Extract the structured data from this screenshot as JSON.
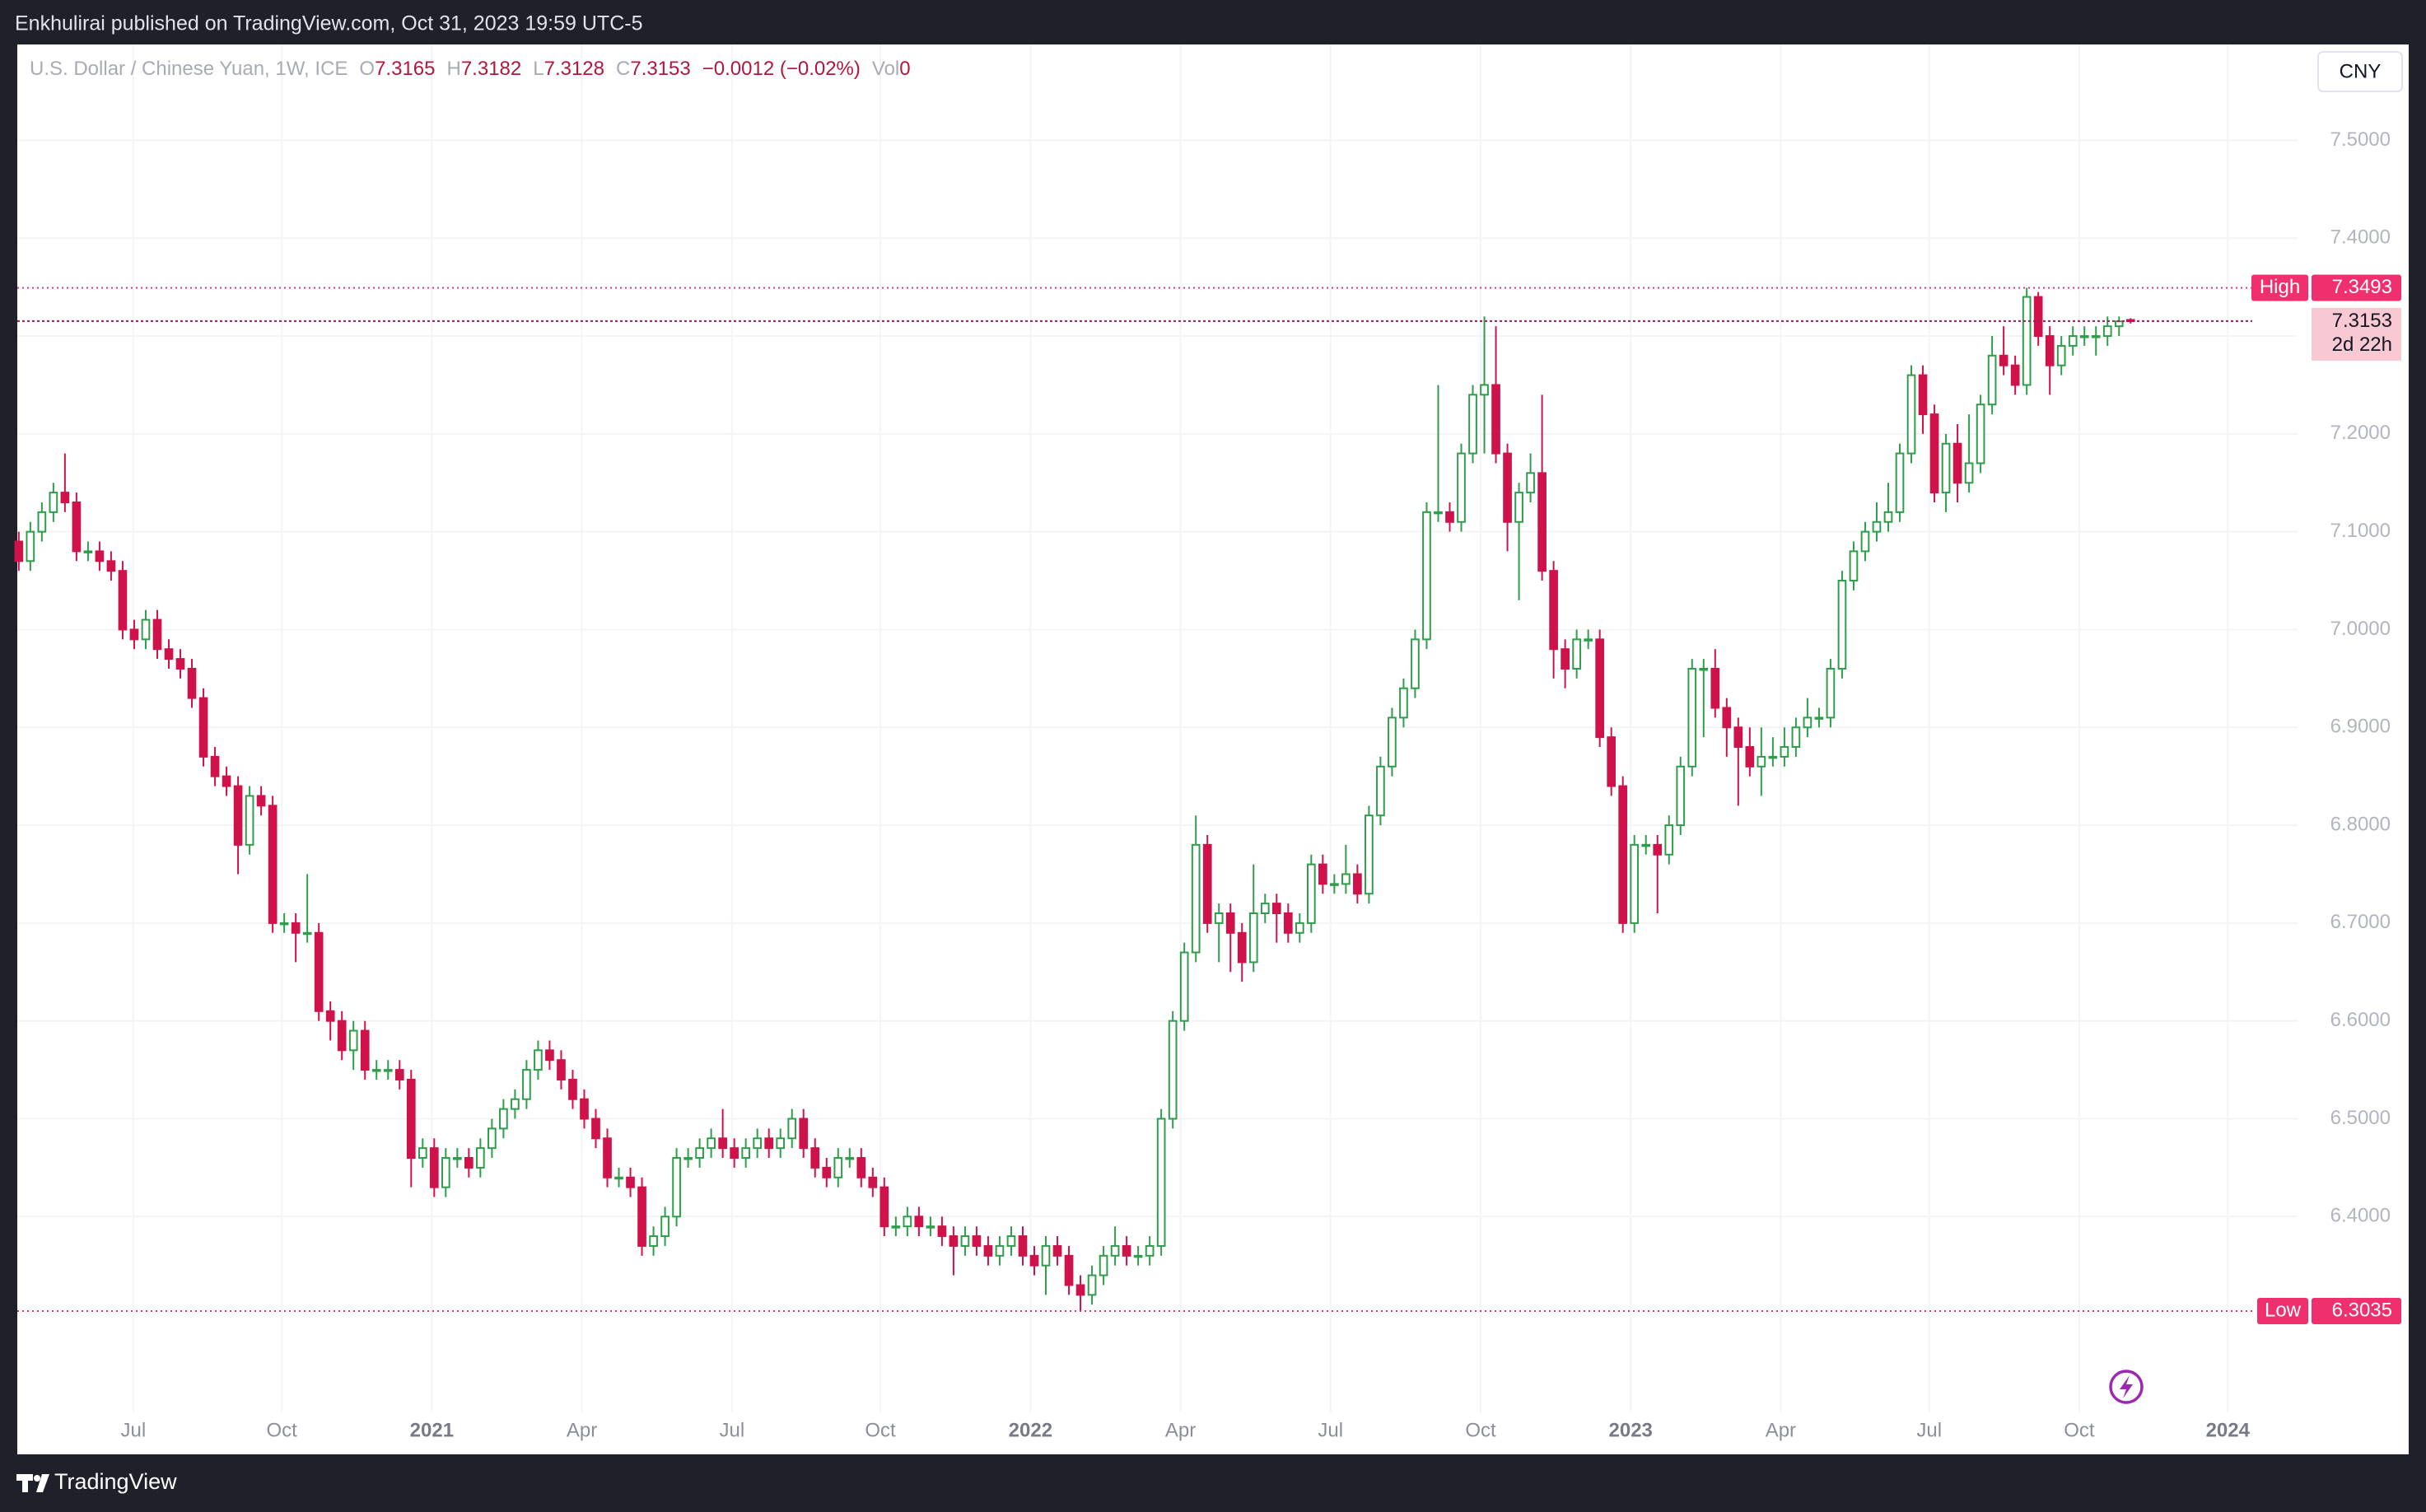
{
  "header": {
    "text": "Enkhulirai published on TradingView.com, Oct 31, 2023 19:59 UTC-5"
  },
  "chart_data": {
    "type": "candlestick",
    "title": "U.S. Dollar / Chinese Yuan, 1W, ICE",
    "legend": {
      "o": "O",
      "h": "H",
      "l": "L",
      "c": "C",
      "change": "−0.0012 (−0.02%)",
      "vol_label": "Vol",
      "volume": 0
    },
    "currency": "CNY",
    "up_color": "#2e9e4a",
    "down_color": "#d0124a",
    "open": [
      7.09,
      7.07,
      7.1,
      7.12,
      7.14,
      7.13,
      7.08,
      7.08,
      7.07,
      7.06,
      7.0,
      6.99,
      7.01,
      6.98,
      6.97,
      6.96,
      6.93,
      6.87,
      6.85,
      6.84,
      6.78,
      6.83,
      6.82,
      6.7,
      6.7,
      6.69,
      6.69,
      6.61,
      6.6,
      6.57,
      6.59,
      6.55,
      6.55,
      6.55,
      6.54,
      6.46,
      6.47,
      6.43,
      6.46,
      6.46,
      6.45,
      6.47,
      6.49,
      6.51,
      6.52,
      6.55,
      6.57,
      6.56,
      6.54,
      6.52,
      6.5,
      6.48,
      6.44,
      6.44,
      6.43,
      6.37,
      6.38,
      6.4,
      6.46,
      6.46,
      6.47,
      6.48,
      6.47,
      6.46,
      6.47,
      6.48,
      6.47,
      6.48,
      6.5,
      6.47,
      6.45,
      6.44,
      6.46,
      6.46,
      6.44,
      6.43,
      6.39,
      6.39,
      6.4,
      6.39,
      6.39,
      6.38,
      6.37,
      6.38,
      6.37,
      6.36,
      6.37,
      6.38,
      6.36,
      6.35,
      6.37,
      6.36,
      6.33,
      6.32,
      6.34,
      6.36,
      6.37,
      6.36,
      6.36,
      6.37,
      6.5,
      6.6,
      6.67,
      6.78,
      6.7,
      6.71,
      6.69,
      6.66,
      6.71,
      6.72,
      6.71,
      6.69,
      6.7,
      6.76,
      6.74,
      6.74,
      6.75,
      6.73,
      6.81,
      6.86,
      6.91,
      6.94,
      6.99,
      7.12,
      7.12,
      7.11,
      7.18,
      7.24,
      7.25,
      7.18,
      7.11,
      7.14,
      7.16,
      7.06,
      6.98,
      6.96,
      6.99,
      6.99,
      6.89,
      6.84,
      6.7,
      6.78,
      6.78,
      6.77,
      6.8,
      6.86,
      6.96,
      6.96,
      6.92,
      6.9,
      6.88,
      6.86,
      6.87,
      6.87,
      6.88,
      6.9,
      6.91,
      6.91,
      6.96,
      7.05,
      7.08,
      7.1,
      7.11,
      7.12,
      7.18,
      7.26,
      7.22,
      7.14,
      7.19,
      7.15,
      7.17,
      7.23,
      7.28,
      7.27,
      7.25,
      7.34,
      7.3,
      7.27,
      7.29,
      7.3,
      7.3,
      7.3,
      7.31,
      7.3165
    ],
    "high": [
      7.1,
      7.11,
      7.13,
      7.15,
      7.18,
      7.14,
      7.09,
      7.09,
      7.08,
      7.07,
      7.01,
      7.02,
      7.02,
      6.99,
      6.98,
      6.97,
      6.94,
      6.88,
      6.86,
      6.85,
      6.84,
      6.84,
      6.83,
      6.71,
      6.71,
      6.75,
      6.7,
      6.62,
      6.61,
      6.6,
      6.6,
      6.56,
      6.56,
      6.56,
      6.55,
      6.48,
      6.48,
      6.47,
      6.47,
      6.47,
      6.48,
      6.5,
      6.52,
      6.53,
      6.56,
      6.58,
      6.58,
      6.57,
      6.55,
      6.53,
      6.51,
      6.49,
      6.45,
      6.45,
      6.44,
      6.39,
      6.41,
      6.47,
      6.47,
      6.48,
      6.49,
      6.51,
      6.48,
      6.48,
      6.49,
      6.49,
      6.49,
      6.51,
      6.51,
      6.48,
      6.46,
      6.47,
      6.47,
      6.47,
      6.45,
      6.44,
      6.4,
      6.41,
      6.41,
      6.4,
      6.4,
      6.39,
      6.39,
      6.39,
      6.38,
      6.38,
      6.39,
      6.39,
      6.37,
      6.38,
      6.38,
      6.37,
      6.34,
      6.35,
      6.37,
      6.39,
      6.38,
      6.37,
      6.38,
      6.51,
      6.61,
      6.68,
      6.81,
      6.79,
      6.72,
      6.72,
      6.7,
      6.76,
      6.73,
      6.73,
      6.72,
      6.71,
      6.77,
      6.77,
      6.75,
      6.78,
      6.76,
      6.82,
      6.87,
      6.92,
      6.95,
      7.0,
      7.13,
      7.25,
      7.13,
      7.19,
      7.25,
      7.32,
      7.31,
      7.19,
      7.15,
      7.18,
      7.24,
      7.07,
      6.99,
      7.0,
      7.0,
      7.0,
      6.9,
      6.85,
      6.79,
      6.79,
      6.79,
      6.81,
      6.87,
      6.97,
      6.97,
      6.98,
      6.93,
      6.91,
      6.9,
      6.9,
      6.89,
      6.9,
      6.91,
      6.93,
      6.92,
      6.97,
      7.06,
      7.09,
      7.11,
      7.13,
      7.15,
      7.19,
      7.27,
      7.27,
      7.23,
      7.2,
      7.21,
      7.22,
      7.24,
      7.3,
      7.31,
      7.28,
      7.3493,
      7.345,
      7.31,
      7.3,
      7.31,
      7.31,
      7.31,
      7.32,
      7.32,
      7.3182
    ],
    "low": [
      7.06,
      7.06,
      7.09,
      7.11,
      7.12,
      7.07,
      7.07,
      7.06,
      7.05,
      6.99,
      6.98,
      6.98,
      6.97,
      6.96,
      6.95,
      6.92,
      6.86,
      6.84,
      6.83,
      6.75,
      6.77,
      6.81,
      6.69,
      6.69,
      6.66,
      6.68,
      6.6,
      6.58,
      6.56,
      6.55,
      6.54,
      6.54,
      6.54,
      6.53,
      6.43,
      6.45,
      6.42,
      6.42,
      6.45,
      6.44,
      6.44,
      6.46,
      6.48,
      6.5,
      6.51,
      6.54,
      6.55,
      6.53,
      6.51,
      6.49,
      6.47,
      6.43,
      6.43,
      6.42,
      6.36,
      6.36,
      6.37,
      6.39,
      6.45,
      6.45,
      6.46,
      6.46,
      6.45,
      6.45,
      6.46,
      6.46,
      6.46,
      6.47,
      6.46,
      6.44,
      6.43,
      6.43,
      6.45,
      6.43,
      6.42,
      6.38,
      6.38,
      6.38,
      6.38,
      6.38,
      6.37,
      6.34,
      6.36,
      6.36,
      6.35,
      6.35,
      6.36,
      6.35,
      6.34,
      6.32,
      6.35,
      6.32,
      6.3035,
      6.31,
      6.33,
      6.35,
      6.35,
      6.35,
      6.35,
      6.36,
      6.49,
      6.59,
      6.66,
      6.69,
      6.66,
      6.65,
      6.64,
      6.65,
      6.7,
      6.68,
      6.68,
      6.68,
      6.69,
      6.73,
      6.73,
      6.73,
      6.72,
      6.72,
      6.8,
      6.85,
      6.9,
      6.93,
      6.98,
      7.11,
      7.1,
      7.1,
      7.17,
      7.18,
      7.17,
      7.08,
      7.03,
      7.13,
      7.05,
      6.95,
      6.94,
      6.95,
      6.98,
      6.88,
      6.83,
      6.69,
      6.69,
      6.77,
      6.71,
      6.76,
      6.79,
      6.85,
      6.89,
      6.91,
      6.87,
      6.82,
      6.85,
      6.83,
      6.86,
      6.86,
      6.87,
      6.89,
      6.9,
      6.9,
      6.95,
      7.04,
      7.07,
      7.09,
      7.1,
      7.11,
      7.17,
      7.2,
      7.13,
      7.12,
      7.13,
      7.14,
      7.16,
      7.22,
      7.26,
      7.24,
      7.24,
      7.29,
      7.24,
      7.26,
      7.28,
      7.29,
      7.28,
      7.29,
      7.3,
      7.3128
    ],
    "close": [
      7.07,
      7.1,
      7.12,
      7.14,
      7.13,
      7.08,
      7.08,
      7.07,
      7.06,
      7.0,
      6.99,
      7.01,
      6.98,
      6.97,
      6.96,
      6.93,
      6.87,
      6.85,
      6.84,
      6.78,
      6.83,
      6.82,
      6.7,
      6.7,
      6.69,
      6.69,
      6.61,
      6.6,
      6.57,
      6.59,
      6.55,
      6.55,
      6.55,
      6.54,
      6.46,
      6.47,
      6.43,
      6.46,
      6.46,
      6.45,
      6.47,
      6.49,
      6.51,
      6.52,
      6.55,
      6.57,
      6.56,
      6.54,
      6.52,
      6.5,
      6.48,
      6.44,
      6.44,
      6.43,
      6.37,
      6.38,
      6.4,
      6.46,
      6.46,
      6.47,
      6.48,
      6.47,
      6.46,
      6.47,
      6.48,
      6.47,
      6.48,
      6.5,
      6.47,
      6.45,
      6.44,
      6.46,
      6.46,
      6.44,
      6.43,
      6.39,
      6.39,
      6.4,
      6.39,
      6.39,
      6.38,
      6.37,
      6.38,
      6.37,
      6.36,
      6.37,
      6.38,
      6.36,
      6.35,
      6.37,
      6.36,
      6.33,
      6.32,
      6.34,
      6.36,
      6.37,
      6.36,
      6.36,
      6.37,
      6.5,
      6.6,
      6.67,
      6.78,
      6.7,
      6.71,
      6.69,
      6.66,
      6.71,
      6.72,
      6.71,
      6.69,
      6.7,
      6.76,
      6.74,
      6.74,
      6.75,
      6.73,
      6.81,
      6.86,
      6.91,
      6.94,
      6.99,
      7.12,
      7.12,
      7.11,
      7.18,
      7.24,
      7.25,
      7.18,
      7.11,
      7.14,
      7.16,
      7.06,
      6.98,
      6.96,
      6.99,
      6.99,
      6.89,
      6.84,
      6.7,
      6.78,
      6.78,
      6.77,
      6.8,
      6.86,
      6.96,
      6.96,
      6.92,
      6.9,
      6.88,
      6.86,
      6.87,
      6.87,
      6.88,
      6.9,
      6.91,
      6.91,
      6.96,
      7.05,
      7.08,
      7.1,
      7.11,
      7.12,
      7.18,
      7.26,
      7.22,
      7.14,
      7.19,
      7.15,
      7.17,
      7.23,
      7.28,
      7.27,
      7.25,
      7.34,
      7.3,
      7.27,
      7.29,
      7.3,
      7.3,
      7.3,
      7.31,
      7.315,
      7.3153
    ],
    "xlim": [
      -0.13,
      207.1
    ],
    "xticks": [
      {
        "value": 9.92,
        "label": "Jul"
      },
      {
        "value": 22.79,
        "label": "Oct"
      },
      {
        "value": 35.79,
        "label": "2021"
      },
      {
        "value": 48.79,
        "label": "Apr"
      },
      {
        "value": 61.8,
        "label": "Jul"
      },
      {
        "value": 74.66,
        "label": "Oct"
      },
      {
        "value": 87.67,
        "label": "2022"
      },
      {
        "value": 100.67,
        "label": "Apr"
      },
      {
        "value": 113.67,
        "label": "Jul"
      },
      {
        "value": 126.68,
        "label": "Oct"
      },
      {
        "value": 139.68,
        "label": "2023"
      },
      {
        "value": 152.68,
        "label": "Apr"
      },
      {
        "value": 165.55,
        "label": "Jul"
      },
      {
        "value": 178.55,
        "label": "Oct"
      },
      {
        "value": 191.42,
        "label": "2024"
      }
    ],
    "ylim": [
      6.157,
      7.598
    ],
    "yticks": [
      {
        "value": 6.4,
        "label": "6.4000"
      },
      {
        "value": 6.5,
        "label": "6.5000"
      },
      {
        "value": 6.6,
        "label": "6.6000"
      },
      {
        "value": 6.7,
        "label": "6.7000"
      },
      {
        "value": 6.8,
        "label": "6.8000"
      },
      {
        "value": 6.9,
        "label": "6.9000"
      },
      {
        "value": 7.0,
        "label": "7.0000"
      },
      {
        "value": 7.1,
        "label": "7.1000"
      },
      {
        "value": 7.2,
        "label": "7.2000"
      },
      {
        "value": 7.3,
        "label": "7.3000"
      },
      {
        "value": 7.4,
        "label": "7.4000"
      },
      {
        "value": 7.5,
        "label": "7.5000"
      }
    ],
    "grid": true,
    "high_line": {
      "label": "High",
      "value": 7.3493,
      "color": "#f0306e"
    },
    "low_line": {
      "label": "Low",
      "value": 6.3035,
      "color": "#f0306e"
    },
    "countdown": "2d 22h"
  },
  "footer": {
    "brand": "TradingView"
  }
}
